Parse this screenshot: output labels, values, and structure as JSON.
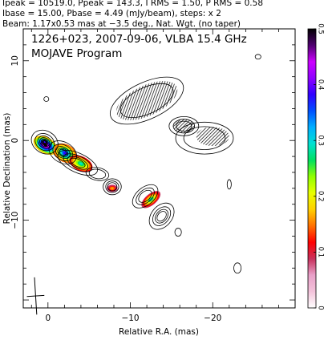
{
  "header": {
    "lines": [
      "Ipeak = 10519.0, Ppeak = 143.3, I RMS = 1.50, P RMS = 0.58",
      "Ibase = 15.00, Pbase = 4.49 (mJy/beam), steps: x 2",
      "Beam: 1.17x0.53 mas at −3.5 deg., Nat. Wgt. (no taper)"
    ]
  },
  "chart_data": {
    "type": "heatmap",
    "title": "1226+023, 2007-09-06, VLBA 15.4 GHz",
    "subtitle": "MOJAVE Program",
    "xlabel": "Relative R.A. (mas)",
    "ylabel": "Relative Declination (mas)",
    "xlim": [
      3,
      -30
    ],
    "ylim": [
      -21,
      14
    ],
    "xticks": [
      0,
      -10,
      -20
    ],
    "xtick_labels": [
      "0",
      "−10",
      "−20"
    ],
    "yticks": [
      10,
      0,
      -10
    ],
    "ytick_labels": [
      "10",
      "0",
      "−10"
    ],
    "colorbar": {
      "range": [
        0,
        0.5
      ],
      "ticks": [
        0,
        0.1,
        0.2,
        0.3,
        0.4,
        0.5
      ],
      "tick_labels": [
        "0",
        "0.1",
        "0.2",
        "0.3",
        "0.4",
        "0.5"
      ],
      "colors": [
        "#ffffff",
        "#f3c2da",
        "#e8a0c8",
        "#c8305c",
        "#ff0000",
        "#ff7000",
        "#ffd000",
        "#e8ff00",
        "#90ff00",
        "#00e060",
        "#00e0d0",
        "#00b0ff",
        "#0050ff",
        "#3000ff",
        "#9000ff",
        "#cc00ff",
        "#500070",
        "#000000"
      ]
    },
    "contour_components": [
      {
        "x": 0.4,
        "y": -0.2,
        "sx": 1.7,
        "sy": 1.4,
        "pa": 30,
        "levels": 8
      },
      {
        "x": -1.8,
        "y": -1.5,
        "sx": 1.8,
        "sy": 1.3,
        "pa": 30,
        "levels": 5
      },
      {
        "x": -3.6,
        "y": -2.8,
        "sx": 2.6,
        "sy": 1.2,
        "pa": 25,
        "levels": 4
      },
      {
        "x": -6.0,
        "y": -4.2,
        "sx": 1.4,
        "sy": 0.8,
        "pa": 10,
        "levels": 2
      },
      {
        "x": -7.8,
        "y": -5.8,
        "sx": 1.1,
        "sy": 1.0,
        "pa": 0,
        "levels": 3
      },
      {
        "x": -11.8,
        "y": -7.0,
        "sx": 1.8,
        "sy": 1.1,
        "pa": -40,
        "levels": 3
      },
      {
        "x": -13.8,
        "y": -9.5,
        "sx": 1.8,
        "sy": 1.3,
        "pa": -50,
        "levels": 4
      },
      {
        "x": -15.8,
        "y": -11.5,
        "sx": 0.4,
        "sy": 0.5,
        "pa": 0,
        "levels": 1
      },
      {
        "x": -23.0,
        "y": -16.0,
        "sx": 0.45,
        "sy": 0.65,
        "pa": 0,
        "levels": 1
      },
      {
        "x": -22.0,
        "y": -5.5,
        "sx": 0.25,
        "sy": 0.6,
        "pa": 0,
        "levels": 1
      },
      {
        "x": -12.0,
        "y": 5.0,
        "sx": 4.8,
        "sy": 2.3,
        "pa": -25,
        "levels": 2
      },
      {
        "x": -16.5,
        "y": 1.8,
        "sx": 1.8,
        "sy": 1.2,
        "pa": 0,
        "levels": 3
      },
      {
        "x": -19.0,
        "y": 0.3,
        "sx": 3.5,
        "sy": 2.0,
        "pa": 0,
        "levels": 2
      },
      {
        "x": -25.5,
        "y": 10.5,
        "sx": 0.35,
        "sy": 0.3,
        "pa": 0,
        "levels": 1
      },
      {
        "x": 0.2,
        "y": 5.2,
        "sx": 0.3,
        "sy": 0.3,
        "pa": 0,
        "levels": 1
      }
    ],
    "polarized_components": [
      {
        "x": 0.3,
        "y": -0.6,
        "sx": 1.6,
        "sy": 1.0,
        "pa": 30,
        "peak": 0.5
      },
      {
        "x": -2.1,
        "y": -1.6,
        "sx": 1.5,
        "sy": 1.1,
        "pa": 30,
        "peak": 0.38
      },
      {
        "x": -4.0,
        "y": -2.9,
        "sx": 1.5,
        "sy": 0.9,
        "pa": 25,
        "peak": 0.3
      },
      {
        "x": -7.8,
        "y": -6.0,
        "sx": 0.7,
        "sy": 0.5,
        "pa": 0,
        "peak": 0.18
      },
      {
        "x": -12.5,
        "y": -7.4,
        "sx": 1.4,
        "sy": 0.7,
        "pa": -40,
        "peak": 0.28
      }
    ],
    "hatched_regions": [
      {
        "x": -12.0,
        "y": 5.0,
        "sx": 4.0,
        "sy": 1.9,
        "pa": -25
      },
      {
        "x": -16.5,
        "y": 1.8,
        "sx": 1.3,
        "sy": 0.9,
        "pa": 0
      },
      {
        "x": -20.0,
        "y": 0.5,
        "sx": 2.0,
        "sy": 1.2,
        "pa": 0
      }
    ],
    "beam": {
      "major_mas": 1.17,
      "minor_mas": 0.53,
      "pa_deg": -3.5
    }
  }
}
